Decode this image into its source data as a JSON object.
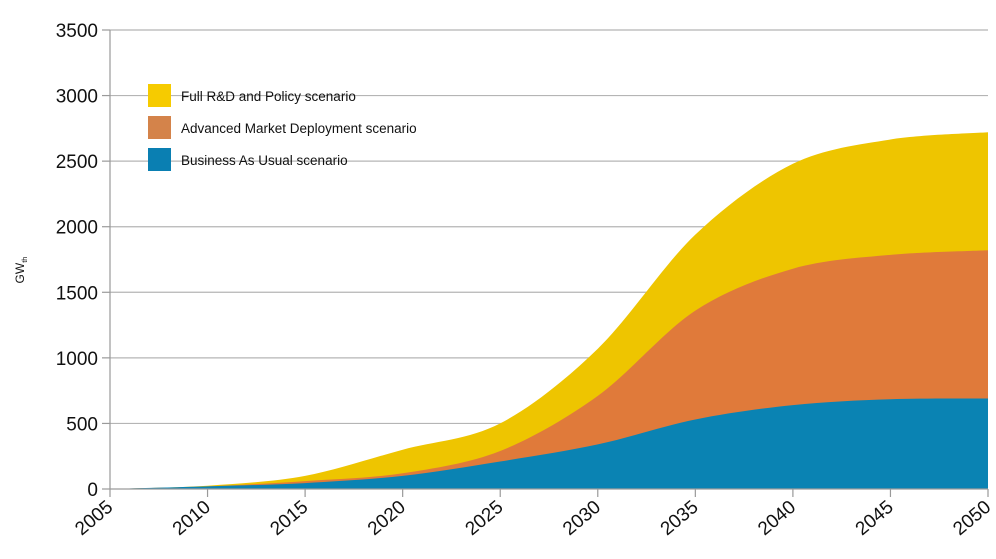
{
  "chart_data": {
    "type": "area",
    "stacked": true,
    "title": "",
    "xlabel": "",
    "ylabel": "GW",
    "ylabel_subscript": "th",
    "x": [
      2005,
      2010,
      2015,
      2020,
      2025,
      2030,
      2035,
      2040,
      2045,
      2050
    ],
    "xlim": [
      2005,
      2050
    ],
    "ylim": [
      0,
      3500
    ],
    "yticks": [
      "0",
      "500",
      "1000",
      "1500",
      "2000",
      "2500",
      "3000",
      "3500"
    ],
    "xticks": [
      "2005",
      "2010",
      "2015",
      "2020",
      "2025",
      "2030",
      "2035",
      "2040",
      "2045",
      "2050"
    ],
    "grid": "horizontal",
    "legend_position": "top-left",
    "series": [
      {
        "name": "Business As Usual scenario",
        "color": "#0a83b3",
        "values": [
          0,
          20,
          45,
          100,
          210,
          340,
          530,
          640,
          685,
          690
        ]
      },
      {
        "name": "Advanced Market Deployment scenario",
        "color": "#e07a3a",
        "values": [
          0,
          0,
          15,
          20,
          80,
          370,
          830,
          1040,
          1100,
          1130
        ]
      },
      {
        "name": "Full R&D and Policy scenario",
        "color": "#eec500",
        "values": [
          0,
          5,
          40,
          180,
          210,
          360,
          580,
          800,
          880,
          900
        ]
      }
    ],
    "legend_order": [
      "Full R&D and Policy scenario",
      "Advanced Market Deployment scenario",
      "Business As Usual scenario"
    ],
    "legend_colors": [
      "#f6cb00",
      "#d4834a",
      "#0a7fb2"
    ]
  }
}
